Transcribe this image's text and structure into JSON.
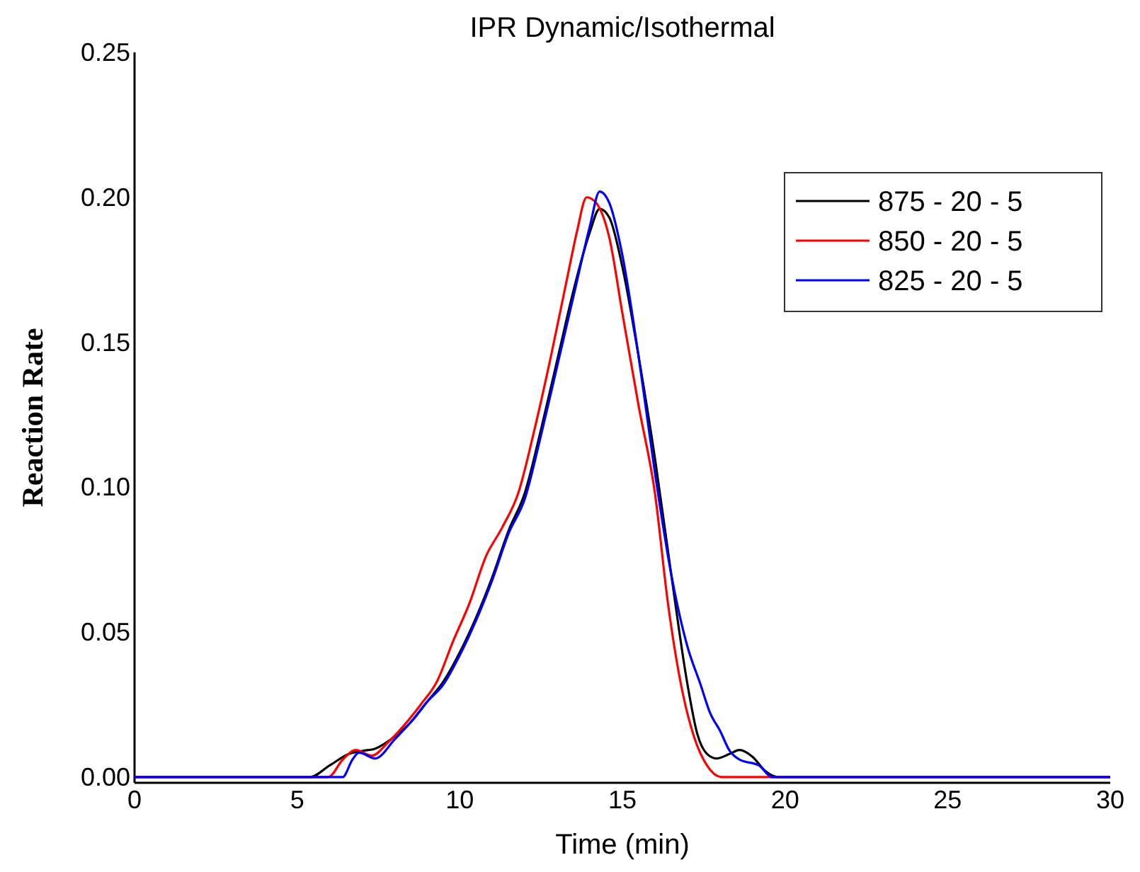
{
  "chart_data": {
    "type": "line",
    "title": "IPR Dynamic/Isothermal",
    "xlabel": "Time (min)",
    "ylabel": "Reaction Rate",
    "xlim": [
      0,
      30
    ],
    "xticks": [
      0,
      5,
      10,
      15,
      20,
      25,
      30
    ],
    "ylim": [
      -0.002,
      0.25
    ],
    "yticks": [
      {
        "value": 0,
        "label": "0.00"
      },
      {
        "value": 0.05,
        "label": "0.05"
      },
      {
        "value": 0.1,
        "label": "0.10"
      },
      {
        "value": 0.15,
        "label": "0.15"
      },
      {
        "value": 0.2,
        "label": "0.20"
      },
      {
        "value": 0.25,
        "label": "0.25"
      }
    ],
    "grid": false,
    "legend": "top right",
    "line_style": "solid",
    "marker": "none",
    "series": [
      {
        "name": "875 - 20 - 5",
        "color": "#000000",
        "x": [
          0,
          5.4,
          6,
          6.6,
          7,
          7.4,
          8,
          8.5,
          9,
          9.5,
          10,
          10.5,
          11,
          11.5,
          12,
          12.5,
          13,
          13.5,
          14,
          14.3,
          14.6,
          15,
          15.5,
          16,
          16.5,
          17,
          17.3,
          17.6,
          17.9,
          18.3,
          18.6,
          19,
          19.4,
          19.77,
          30
        ],
        "values": [
          0,
          0,
          0.004,
          0.008,
          0.009,
          0.0098,
          0.014,
          0.019,
          0.026,
          0.033,
          0.043,
          0.055,
          0.069,
          0.085,
          0.098,
          0.12,
          0.144,
          0.168,
          0.188,
          0.196,
          0.193,
          0.176,
          0.145,
          0.11,
          0.07,
          0.032,
          0.015,
          0.008,
          0.0064,
          0.008,
          0.0093,
          0.007,
          0.002,
          0,
          0
        ]
      },
      {
        "name": "850 - 20 - 5",
        "color": "#ff0000",
        "x": [
          0,
          5.96,
          6.4,
          6.8,
          7.3,
          7.8,
          8.3,
          8.8,
          9.3,
          9.8,
          10.3,
          10.8,
          11.3,
          11.8,
          12.3,
          12.8,
          13.3,
          13.6,
          13.9,
          14.2,
          14.6,
          15,
          15.5,
          16,
          16.4,
          16.8,
          17.2,
          17.6,
          18.05,
          30
        ],
        "values": [
          0,
          0,
          0.006,
          0.0093,
          0.0074,
          0.012,
          0.018,
          0.025,
          0.033,
          0.047,
          0.06,
          0.076,
          0.086,
          0.098,
          0.12,
          0.145,
          0.172,
          0.188,
          0.2,
          0.198,
          0.186,
          0.16,
          0.128,
          0.098,
          0.06,
          0.032,
          0.014,
          0.004,
          0,
          0
        ]
      },
      {
        "name": "825 - 20 - 5",
        "color": "#0000ff",
        "x": [
          0,
          6.4,
          6.7,
          6.9,
          7.4,
          8,
          8.5,
          9,
          9.5,
          10,
          10.5,
          11,
          11.5,
          12,
          12.5,
          13,
          13.5,
          14,
          14.3,
          14.6,
          15,
          15.5,
          16,
          16.5,
          17,
          17.4,
          17.7,
          18,
          18.3,
          18.6,
          19.2,
          19.6,
          30
        ],
        "values": [
          0,
          0,
          0.006,
          0.0084,
          0.0064,
          0.013,
          0.019,
          0.026,
          0.032,
          0.042,
          0.054,
          0.068,
          0.084,
          0.096,
          0.118,
          0.142,
          0.166,
          0.19,
          0.202,
          0.198,
          0.18,
          0.145,
          0.105,
          0.07,
          0.045,
          0.032,
          0.022,
          0.016,
          0.009,
          0.006,
          0.004,
          0,
          0
        ]
      }
    ]
  }
}
